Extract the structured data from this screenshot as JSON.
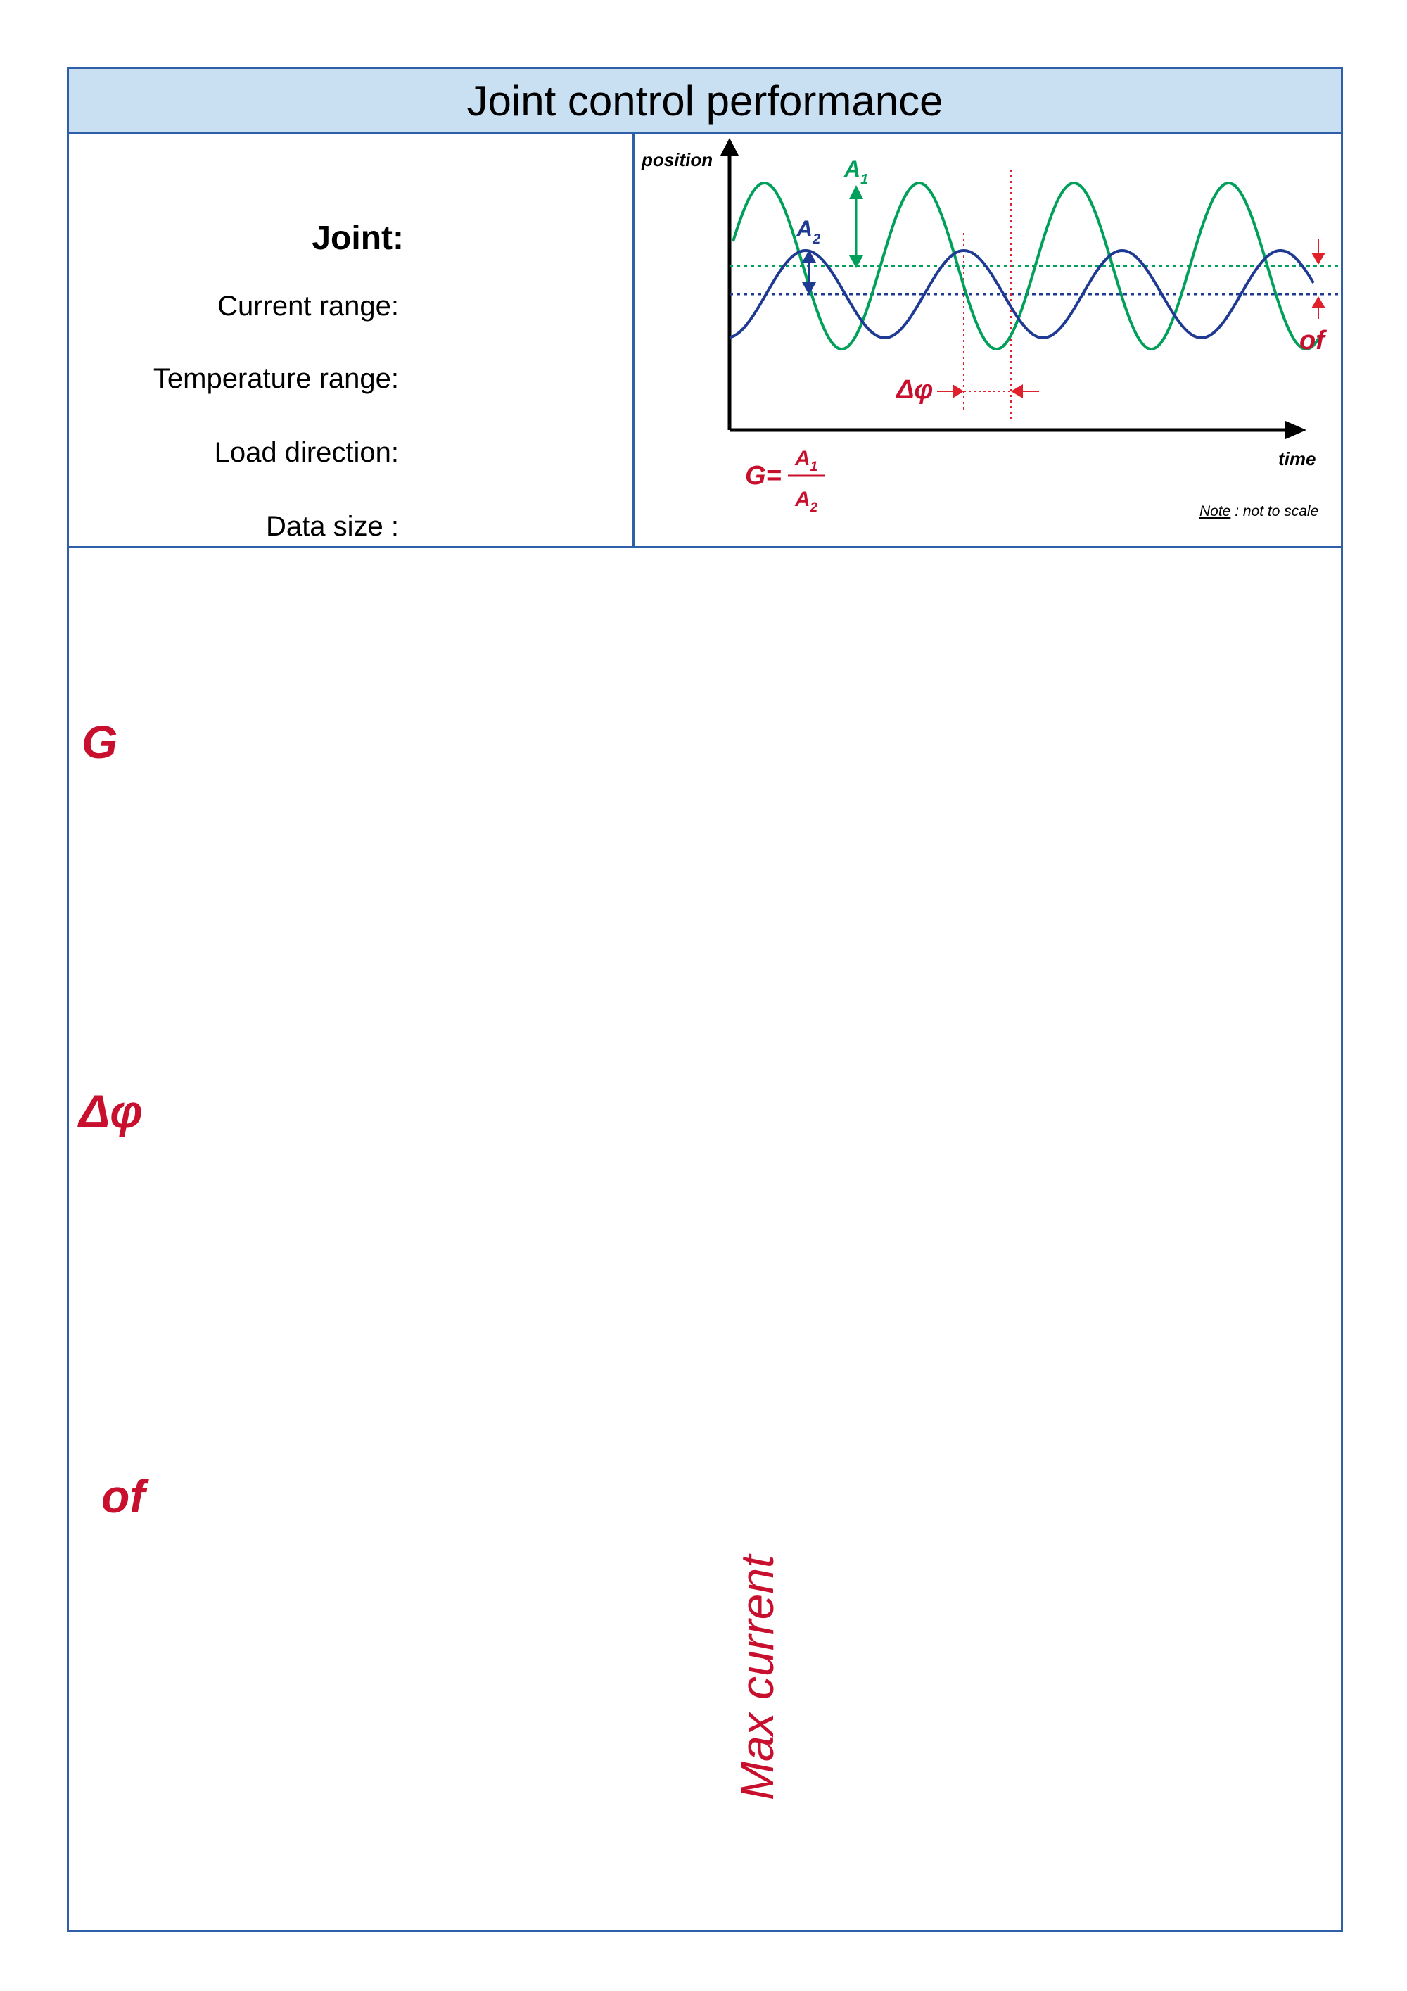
{
  "header": {
    "title": "Joint control performance"
  },
  "info": {
    "joint_label": "Joint:",
    "current_range_label": "Current range:",
    "temperature_range_label": "Temperature range:",
    "load_direction_label": "Load direction:",
    "data_size_label": "Data size :"
  },
  "diagram": {
    "y_axis_label": "position",
    "x_axis_label": "time",
    "a1_label": "A",
    "a1_sub": "1",
    "a2_label": "A",
    "a2_sub": "2",
    "phase_label": "Δφ",
    "offset_label": "of",
    "gain_lhs": "G=",
    "gain_num": "A",
    "gain_num_sub": "1",
    "gain_den": "A",
    "gain_den_sub": "2",
    "note_word": "Note",
    "note_rest": " : not to scale",
    "colors": {
      "green": "#00a05a",
      "blue": "#1f3a93",
      "red": "#e0202a"
    }
  },
  "sections": {
    "gain_label": "G",
    "phase_label": "Δφ",
    "offset_label": "of",
    "max_current_label": "Max current"
  }
}
